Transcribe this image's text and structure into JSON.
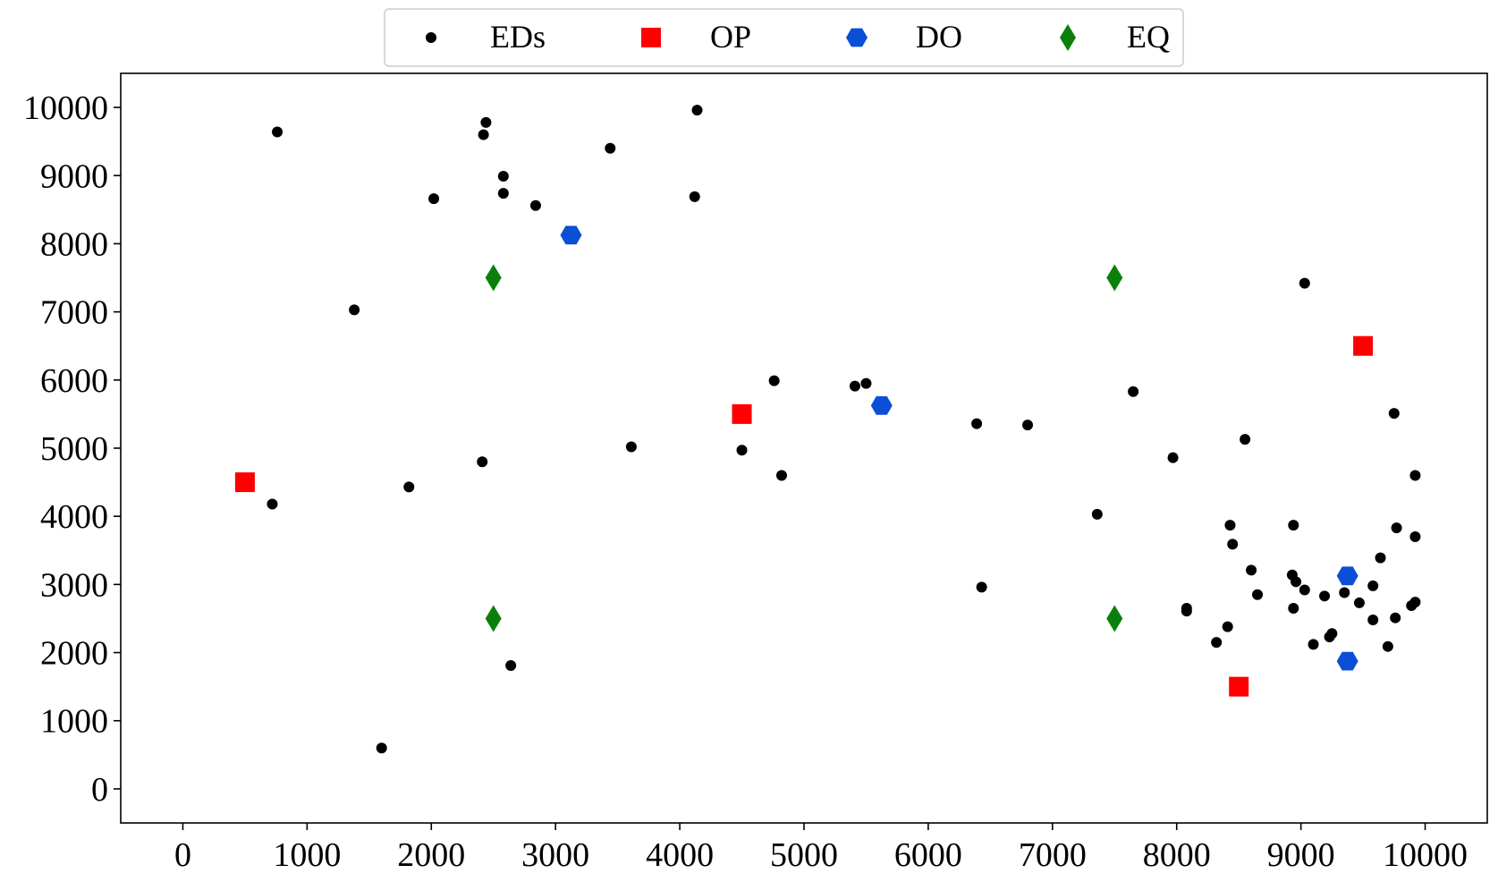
{
  "chart_data": {
    "type": "scatter",
    "title": "",
    "xlabel": "",
    "ylabel": "",
    "xlim": [
      -500,
      10500
    ],
    "ylim": [
      -500,
      10500
    ],
    "xticks": [
      0,
      1000,
      2000,
      3000,
      4000,
      5000,
      6000,
      7000,
      8000,
      9000,
      10000
    ],
    "yticks": [
      0,
      1000,
      2000,
      3000,
      4000,
      5000,
      6000,
      7000,
      8000,
      9000,
      10000
    ],
    "grid": false,
    "legend_position": "top-center",
    "series": [
      {
        "name": "EDs",
        "marker": "circle",
        "color": "#000000",
        "points": [
          [
            760,
            9640
          ],
          [
            2440,
            9780
          ],
          [
            4140,
            9960
          ],
          [
            2420,
            9600
          ],
          [
            3440,
            9400
          ],
          [
            2580,
            8990
          ],
          [
            2020,
            8660
          ],
          [
            2580,
            8740
          ],
          [
            2840,
            8560
          ],
          [
            4120,
            8690
          ],
          [
            1380,
            7030
          ],
          [
            9030,
            7420
          ],
          [
            4760,
            5990
          ],
          [
            5410,
            5910
          ],
          [
            5500,
            5950
          ],
          [
            7650,
            5830
          ],
          [
            6390,
            5360
          ],
          [
            6800,
            5340
          ],
          [
            8550,
            5130
          ],
          [
            9750,
            5510
          ],
          [
            3610,
            5020
          ],
          [
            4500,
            4970
          ],
          [
            2410,
            4800
          ],
          [
            7970,
            4860
          ],
          [
            1820,
            4430
          ],
          [
            4820,
            4600
          ],
          [
            9920,
            4600
          ],
          [
            720,
            4180
          ],
          [
            7360,
            4030
          ],
          [
            8430,
            3870
          ],
          [
            8940,
            3870
          ],
          [
            9770,
            3830
          ],
          [
            8450,
            3590
          ],
          [
            9920,
            3700
          ],
          [
            9640,
            3390
          ],
          [
            8600,
            3210
          ],
          [
            8930,
            3140
          ],
          [
            8960,
            3040
          ],
          [
            9030,
            2920
          ],
          [
            9580,
            2980
          ],
          [
            6430,
            2960
          ],
          [
            8650,
            2850
          ],
          [
            9190,
            2830
          ],
          [
            9350,
            2880
          ],
          [
            9470,
            2730
          ],
          [
            9920,
            2740
          ],
          [
            9890,
            2690
          ],
          [
            8080,
            2650
          ],
          [
            8080,
            2610
          ],
          [
            8940,
            2650
          ],
          [
            9580,
            2480
          ],
          [
            9760,
            2510
          ],
          [
            8410,
            2380
          ],
          [
            9250,
            2280
          ],
          [
            9230,
            2230
          ],
          [
            8320,
            2150
          ],
          [
            9100,
            2120
          ],
          [
            9700,
            2090
          ],
          [
            2640,
            1810
          ],
          [
            1600,
            600
          ]
        ]
      },
      {
        "name": "OP",
        "marker": "square",
        "color": "#ff0000",
        "points": [
          [
            500,
            4500
          ],
          [
            4500,
            5500
          ],
          [
            9500,
            6500
          ],
          [
            8500,
            1500
          ]
        ]
      },
      {
        "name": "DO",
        "marker": "hexagon",
        "color": "#0a4fd6",
        "points": [
          [
            3125,
            8125
          ],
          [
            5625,
            5625
          ],
          [
            9375,
            3125
          ],
          [
            9375,
            1875
          ]
        ]
      },
      {
        "name": "EQ",
        "marker": "diamond",
        "color": "#0a800a",
        "points": [
          [
            2500,
            7500
          ],
          [
            7500,
            7500
          ],
          [
            2500,
            2500
          ],
          [
            7500,
            2500
          ]
        ]
      }
    ]
  }
}
